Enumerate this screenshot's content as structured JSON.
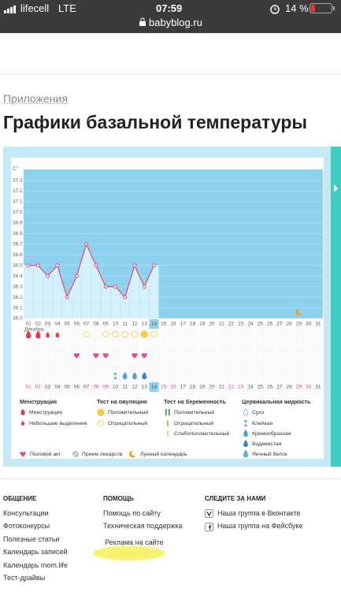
{
  "status_bar": {
    "carrier": "lifecell",
    "network": "LTE",
    "time": "07:59",
    "battery": "14 %",
    "url": "babyblog.ru"
  },
  "breadcrumb": "Приложения",
  "title": "Графики базальной температуры",
  "chart_data": {
    "type": "line",
    "y_unit": "C°",
    "month": "Декабрь",
    "color": "#e0487c",
    "categories": [
      "01",
      "02",
      "03",
      "04",
      "05",
      "06",
      "07",
      "08",
      "09",
      "10",
      "11",
      "12",
      "13",
      "14",
      "15",
      "16",
      "17",
      "18",
      "19",
      "20",
      "21",
      "22",
      "23",
      "24",
      "25",
      "26",
      "27",
      "28",
      "29",
      "30",
      "31"
    ],
    "values": [
      36.5,
      36.5,
      36.4,
      36.5,
      36.2,
      36.4,
      36.7,
      36.5,
      36.3,
      36.3,
      36.2,
      36.5,
      36.3,
      36.5,
      null,
      null,
      null,
      null,
      null,
      null,
      null,
      null,
      null,
      null,
      null,
      null,
      null,
      null,
      null,
      null,
      null
    ],
    "ylim": [
      36.0,
      37.3
    ],
    "yticks": [
      {
        "value": 36,
        "label": "36.0"
      },
      36.1,
      36.2,
      36.3,
      36.4,
      36.5,
      36.6,
      36.7,
      36.8,
      36.9,
      {
        "value": 37,
        "label": "37.0"
      },
      37.1,
      37.2,
      37.3
    ],
    "today": 13,
    "weekend_color": "#e0487c",
    "weekend": [
      true,
      true,
      false,
      false,
      false,
      false,
      false,
      true,
      true,
      false,
      false,
      false,
      false,
      false,
      true,
      true,
      false,
      false,
      false,
      false,
      false,
      true,
      true,
      false,
      false,
      false,
      false,
      false,
      true,
      true,
      false
    ],
    "menstruation": [
      0,
      0,
      1,
      1,
      null,
      null,
      null,
      null,
      null,
      null,
      null,
      null,
      null,
      null,
      null,
      null,
      null,
      null,
      null,
      null,
      null,
      null,
      null,
      null,
      null,
      null,
      null,
      null,
      null,
      null,
      null
    ],
    "ovulation": [
      null,
      null,
      null,
      null,
      null,
      null,
      1,
      null,
      1,
      1,
      1,
      1,
      0,
      1,
      null,
      null,
      null,
      null,
      null,
      null,
      null,
      null,
      null,
      null,
      null,
      null,
      null,
      null,
      null,
      null,
      null
    ],
    "sex": [
      false,
      false,
      false,
      false,
      false,
      true,
      false,
      true,
      true,
      false,
      false,
      true,
      true,
      false,
      false,
      false,
      false,
      false,
      false,
      false,
      false,
      false,
      false,
      false,
      false,
      false,
      false,
      false,
      false,
      false,
      false
    ],
    "cervical": [
      null,
      null,
      null,
      null,
      null,
      null,
      null,
      null,
      null,
      1,
      2,
      2,
      3,
      null,
      null,
      null,
      null,
      null,
      null,
      null,
      null,
      null,
      null,
      null,
      null,
      null,
      null,
      null,
      null,
      null,
      null
    ],
    "lunar": [
      false,
      false,
      false,
      false,
      false,
      false,
      false,
      false,
      false,
      false,
      false,
      false,
      false,
      false,
      false,
      false,
      false,
      false,
      false,
      false,
      false,
      false,
      false,
      false,
      false,
      false,
      false,
      false,
      true,
      false,
      false
    ]
  },
  "legend": {
    "menstruation": {
      "title": "Менструация",
      "items": [
        "Менструация",
        "Небольшие выделения"
      ]
    },
    "ovulation": {
      "title": "Тест на овуляцию",
      "items": [
        "Положительный",
        "Отрицательный"
      ]
    },
    "pregnancy": {
      "title": "Тест на беременность",
      "items": [
        "Положительный",
        "Отрицательный",
        "Слабоположительный"
      ]
    },
    "cervical": {
      "title": "Цервикальная жидкость",
      "items": [
        "Сухо",
        "Клейкая",
        "Кремообразная",
        "Водянистая",
        "Яичный белок"
      ]
    },
    "other": [
      "Половой акт",
      "Прием лекарств",
      "Лунный календарь"
    ]
  },
  "footer": {
    "columns": [
      {
        "title": "ОБЩЕНИЕ",
        "links": [
          "Консультации",
          "Фотоконкурсы",
          "Полезные статьи",
          "Календарь записей",
          "Календарь mom.life",
          "Тест-драйвы"
        ]
      },
      {
        "title": "ПОМОЩЬ",
        "links": [
          "Помощь по сайту",
          "Техническая поддержка",
          "Реклама на сайте"
        ]
      },
      {
        "title": "СЛЕДИТЕ ЗА НАМИ",
        "links": [
          "Наша группа в Вконтакте",
          "Наша группа на Фейсбуке"
        ]
      }
    ]
  }
}
